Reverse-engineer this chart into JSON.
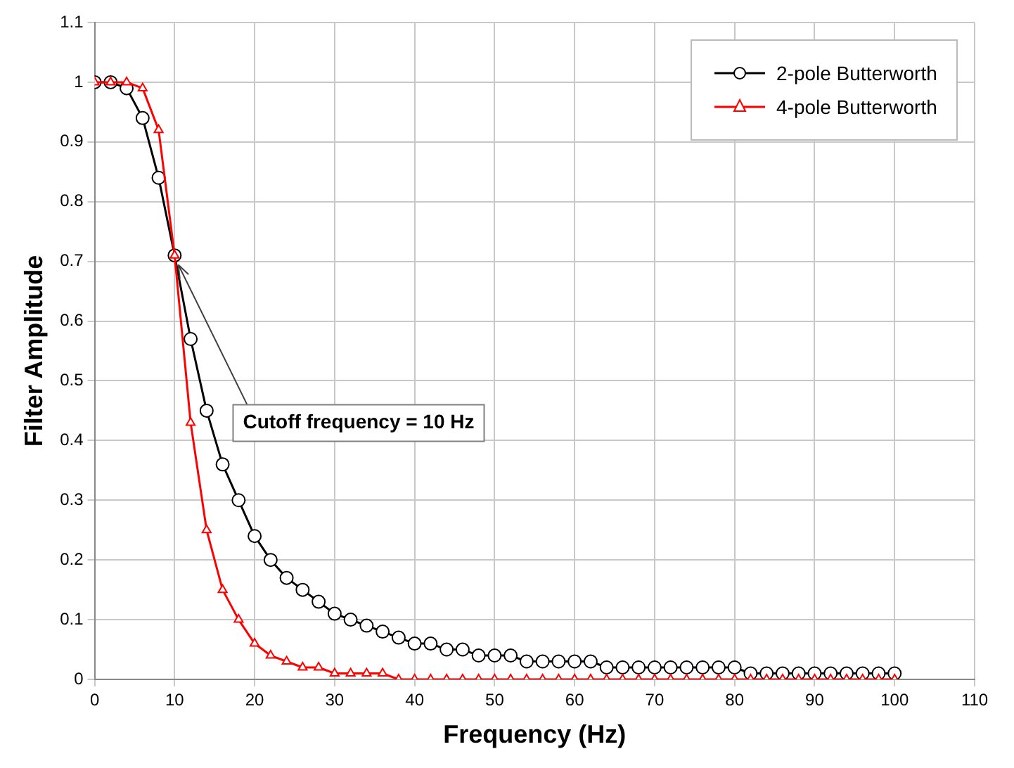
{
  "chart_data": {
    "type": "line",
    "xlabel": "Frequency (Hz)",
    "ylabel": "Filter Amplitude",
    "x": [
      0,
      2,
      4,
      6,
      8,
      10,
      12,
      14,
      16,
      18,
      20,
      22,
      24,
      26,
      28,
      30,
      32,
      34,
      36,
      38,
      40,
      42,
      44,
      46,
      48,
      50,
      52,
      54,
      56,
      58,
      60,
      62,
      64,
      66,
      68,
      70,
      72,
      74,
      76,
      78,
      80,
      82,
      84,
      86,
      88,
      90,
      92,
      94,
      96,
      98,
      100
    ],
    "series": [
      {
        "name": "2-pole Butterworth",
        "color": "#000000",
        "marker": "circle",
        "values": [
          1,
          1,
          0.99,
          0.94,
          0.84,
          0.71,
          0.57,
          0.45,
          0.36,
          0.3,
          0.24,
          0.2,
          0.17,
          0.15,
          0.13,
          0.11,
          0.1,
          0.09,
          0.08,
          0.07,
          0.06,
          0.06,
          0.05,
          0.05,
          0.04,
          0.04,
          0.04,
          0.03,
          0.03,
          0.03,
          0.03,
          0.03,
          0.02,
          0.02,
          0.02,
          0.02,
          0.02,
          0.02,
          0.02,
          0.02,
          0.02,
          0.01,
          0.01,
          0.01,
          0.01,
          0.01,
          0.01,
          0.01,
          0.01,
          0.01,
          0.01
        ]
      },
      {
        "name": "4-pole Butterworth",
        "color": "#ff0000",
        "marker": "triangle",
        "values": [
          1,
          1,
          1,
          0.99,
          0.92,
          0.71,
          0.43,
          0.25,
          0.15,
          0.1,
          0.06,
          0.04,
          0.03,
          0.02,
          0.02,
          0.01,
          0.01,
          0.01,
          0.01,
          0,
          0,
          0,
          0,
          0,
          0,
          0,
          0,
          0,
          0,
          0,
          0,
          0,
          0,
          0,
          0,
          0,
          0,
          0,
          0,
          0,
          0,
          0,
          0,
          0,
          0,
          0,
          0,
          0,
          0,
          0,
          0
        ]
      }
    ],
    "xlim": [
      0,
      110
    ],
    "xticks": [
      0,
      10,
      20,
      30,
      40,
      50,
      60,
      70,
      80,
      90,
      100,
      110
    ],
    "ylim": [
      0,
      1.1
    ],
    "yticks": [
      0,
      0.1,
      0.2,
      0.3,
      0.4,
      0.5,
      0.6,
      0.7,
      0.8,
      0.9,
      1,
      1.1
    ],
    "grid": true,
    "legend": "top right",
    "line_style": "solid",
    "annotations": [
      {
        "text": "Cutoff frequency = 10 Hz",
        "x": 10,
        "y": 0.707
      }
    ]
  }
}
